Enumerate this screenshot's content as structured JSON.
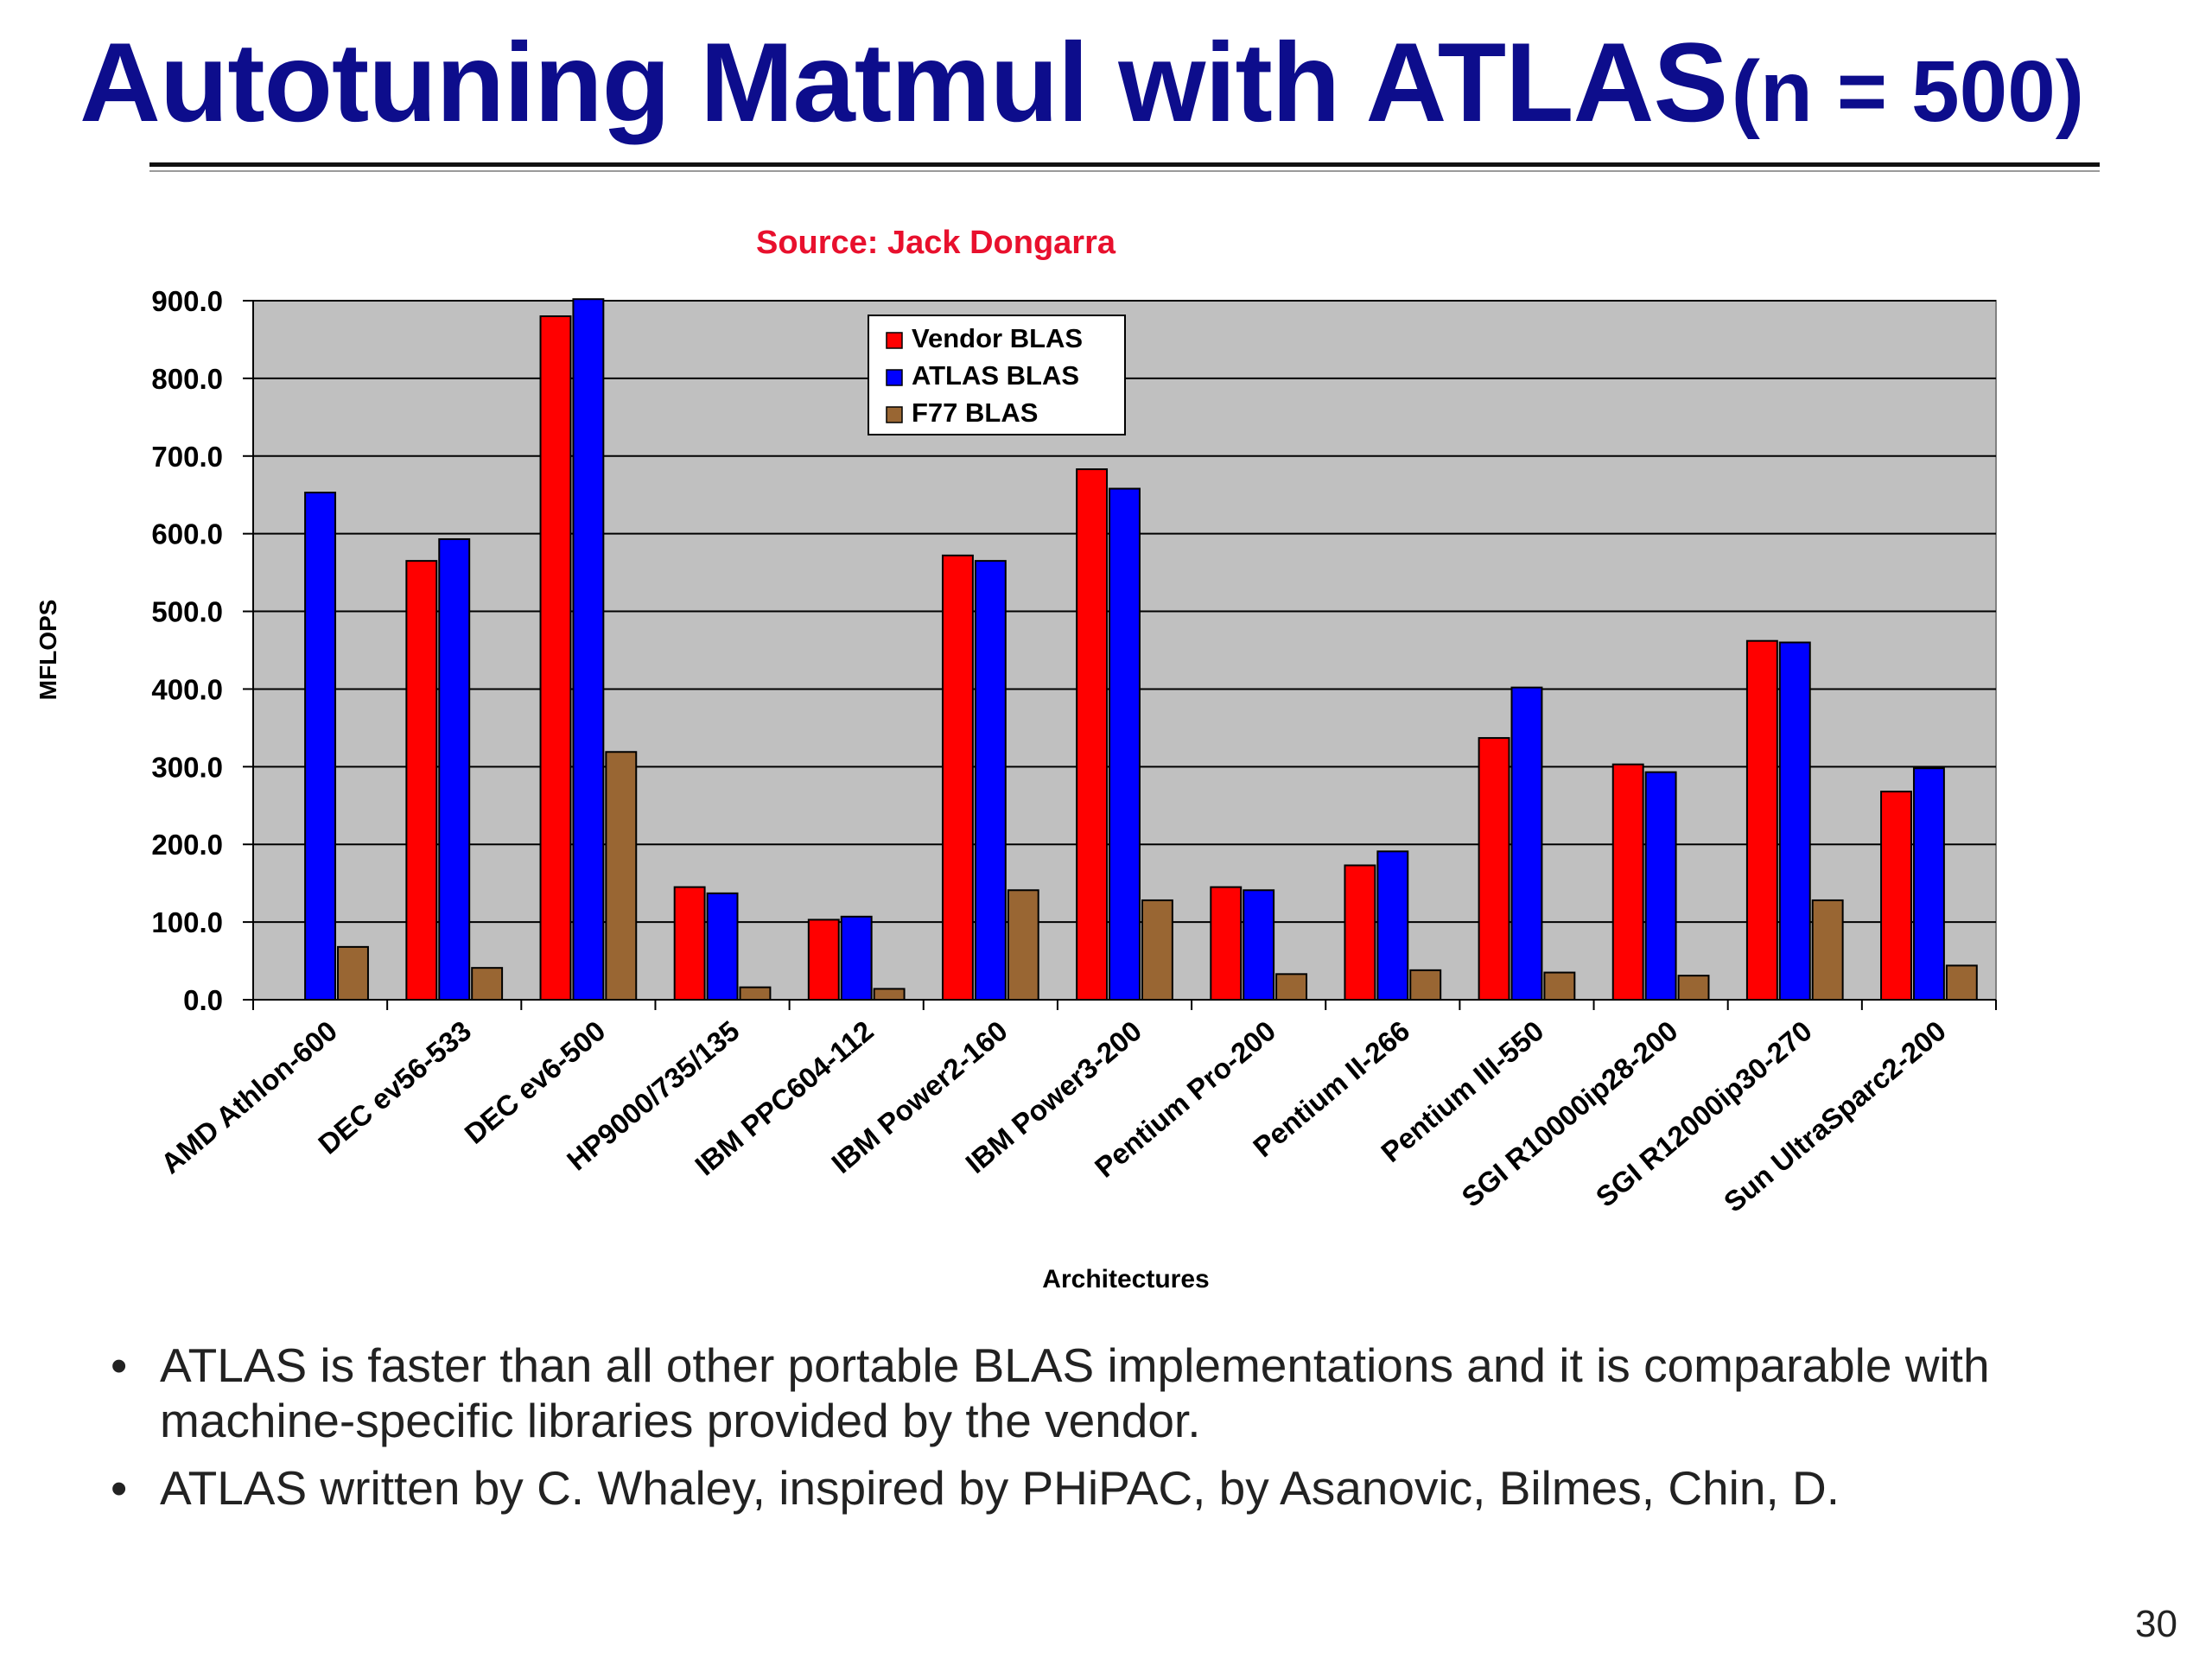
{
  "slide": {
    "title_main": "Autotuning Matmul with ATLAS",
    "title_sub": "(n = 500)",
    "bullets": [
      "ATLAS is faster than all other portable BLAS implementations and it is comparable with machine-specific libraries provided by the vendor.",
      "ATLAS written by C. Whaley, inspired by PHiPAC, by Asanovic, Bilmes, Chin, D."
    ],
    "page_number": "30"
  },
  "chart_data": {
    "type": "bar",
    "source_note": "Source: Jack Dongarra",
    "xlabel": "Architectures",
    "ylabel": "MFLOPS",
    "ylim": [
      0,
      900
    ],
    "yticks": [
      "0.0",
      "100.0",
      "200.0",
      "300.0",
      "400.0",
      "500.0",
      "600.0",
      "700.0",
      "800.0",
      "900.0"
    ],
    "grid": true,
    "legend_position": "top-center",
    "categories": [
      "AMD Athlon-600",
      "DEC ev56-533",
      "DEC ev6-500",
      "HP9000/735/135",
      "IBM PPC604-112",
      "IBM Power2-160",
      "IBM Power3-200",
      "Pentium Pro-200",
      "Pentium II-266",
      "Pentium III-550",
      "SGI R10000ip28-200",
      "SGI R12000ip30-270",
      "Sun UltraSparc2-200"
    ],
    "series": [
      {
        "name": "Vendor BLAS",
        "color": "#ff0000",
        "values": [
          null,
          565,
          880,
          145,
          103,
          572,
          683,
          145,
          173,
          337,
          303,
          462,
          268
        ]
      },
      {
        "name": "ATLAS BLAS",
        "color": "#0000ff",
        "values": [
          653,
          593,
          902,
          137,
          107,
          565,
          658,
          141,
          191,
          402,
          293,
          460,
          298
        ]
      },
      {
        "name": "F77 BLAS",
        "color": "#996633",
        "values": [
          68,
          41,
          319,
          16,
          14,
          141,
          128,
          33,
          38,
          35,
          31,
          128,
          44
        ]
      }
    ],
    "plot_background": "#c0c0c0"
  }
}
